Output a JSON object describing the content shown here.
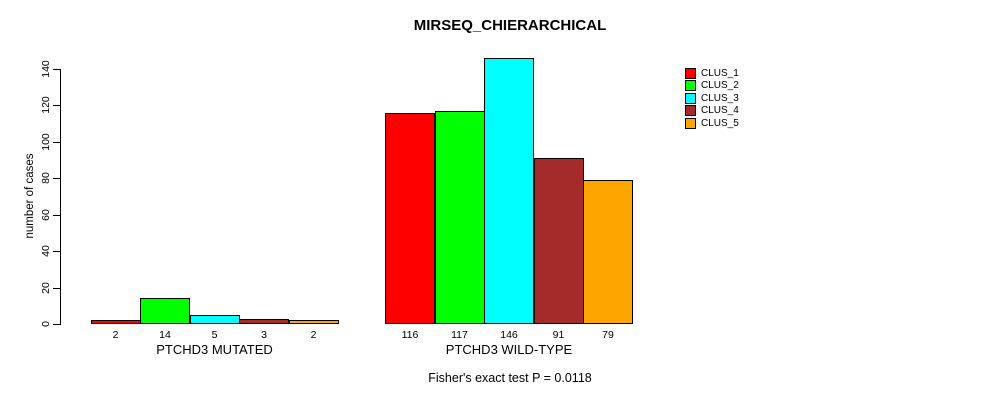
{
  "title": "MIRSEQ_CHIERARCHICAL",
  "footnote": "Fisher's exact test P = 0.0118",
  "y_axis": {
    "label": "number of cases",
    "ticks": [
      0,
      20,
      40,
      60,
      80,
      100,
      120,
      140
    ]
  },
  "legend": {
    "position": "right",
    "entries": [
      {
        "label": "CLUS_1",
        "color": "#FF0000"
      },
      {
        "label": "CLUS_2",
        "color": "#00FF00"
      },
      {
        "label": "CLUS_3",
        "color": "#00FFFF"
      },
      {
        "label": "CLUS_4",
        "color": "#A52A2A"
      },
      {
        "label": "CLUS_5",
        "color": "#FFA500"
      }
    ]
  },
  "chart_data": {
    "type": "bar",
    "title": "MIRSEQ_CHIERARCHICAL",
    "xlabel": "",
    "ylabel": "number of cases",
    "ylim": [
      0,
      146
    ],
    "grid": false,
    "legend_position": "right",
    "bar_value_labels_shown": true,
    "categories": [
      "PTCHD3 MUTATED",
      "PTCHD3 WILD-TYPE"
    ],
    "series": [
      {
        "name": "CLUS_1",
        "color": "#FF0000",
        "values": [
          2,
          116
        ]
      },
      {
        "name": "CLUS_2",
        "color": "#00FF00",
        "values": [
          14,
          117
        ]
      },
      {
        "name": "CLUS_3",
        "color": "#00FFFF",
        "values": [
          5,
          146
        ]
      },
      {
        "name": "CLUS_4",
        "color": "#A52A2A",
        "values": [
          3,
          91
        ]
      },
      {
        "name": "CLUS_5",
        "color": "#FFA500",
        "values": [
          2,
          79
        ]
      }
    ],
    "annotation": "Fisher's exact test P = 0.0118"
  }
}
